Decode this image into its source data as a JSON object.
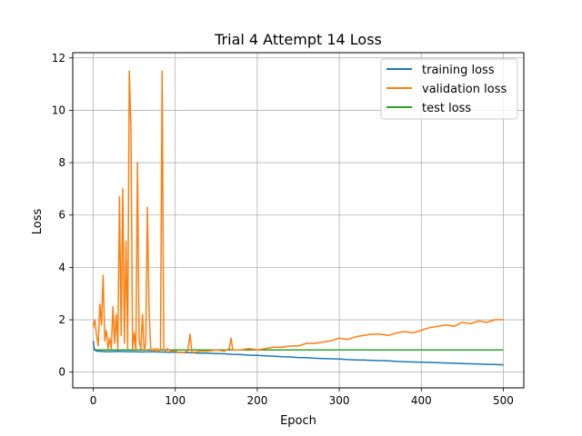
{
  "chart_data": {
    "type": "line",
    "title": "Trial 4 Attempt 14 Loss",
    "xlabel": "Epoch",
    "ylabel": "Loss",
    "xlim": [
      -25,
      525
    ],
    "ylim": [
      -0.6,
      12.2
    ],
    "xticks": [
      0,
      100,
      200,
      300,
      400,
      500
    ],
    "yticks": [
      0,
      2,
      4,
      6,
      8,
      10,
      12
    ],
    "grid": true,
    "legend_position": "top-right",
    "series": [
      {
        "name": "training loss",
        "color": "#1f77b4",
        "x": [
          0,
          1,
          2,
          3,
          5,
          8,
          10,
          15,
          20,
          30,
          40,
          50,
          60,
          70,
          80,
          90,
          100,
          110,
          120,
          130,
          140,
          150,
          160,
          170,
          180,
          190,
          200,
          210,
          220,
          230,
          240,
          250,
          260,
          270,
          280,
          290,
          300,
          310,
          320,
          330,
          340,
          350,
          360,
          370,
          380,
          390,
          400,
          410,
          420,
          430,
          440,
          450,
          460,
          470,
          480,
          490,
          500
        ],
        "y": [
          1.2,
          0.95,
          0.85,
          0.82,
          0.8,
          0.8,
          0.79,
          0.78,
          0.78,
          0.79,
          0.78,
          0.78,
          0.77,
          0.78,
          0.77,
          0.76,
          0.76,
          0.75,
          0.74,
          0.73,
          0.72,
          0.71,
          0.7,
          0.68,
          0.67,
          0.65,
          0.64,
          0.62,
          0.61,
          0.59,
          0.58,
          0.56,
          0.55,
          0.53,
          0.52,
          0.51,
          0.5,
          0.48,
          0.47,
          0.46,
          0.45,
          0.44,
          0.43,
          0.41,
          0.4,
          0.39,
          0.38,
          0.37,
          0.36,
          0.35,
          0.34,
          0.33,
          0.32,
          0.31,
          0.3,
          0.29,
          0.28
        ]
      },
      {
        "name": "validation loss",
        "color": "#ff7f0e",
        "x": [
          0,
          2,
          4,
          6,
          8,
          10,
          12,
          14,
          16,
          18,
          20,
          22,
          24,
          26,
          28,
          30,
          32,
          34,
          36,
          38,
          40,
          42,
          44,
          46,
          48,
          50,
          52,
          54,
          56,
          58,
          60,
          62,
          64,
          66,
          68,
          70,
          72,
          74,
          76,
          78,
          80,
          82,
          84,
          86,
          88,
          90,
          95,
          100,
          105,
          110,
          115,
          118,
          120,
          122,
          130,
          140,
          150,
          160,
          166,
          168,
          170,
          180,
          190,
          200,
          210,
          220,
          230,
          240,
          250,
          260,
          270,
          280,
          290,
          300,
          310,
          320,
          330,
          340,
          350,
          360,
          370,
          380,
          390,
          400,
          410,
          420,
          430,
          440,
          450,
          460,
          470,
          480,
          490,
          500
        ],
        "y": [
          1.7,
          2.0,
          1.4,
          1.0,
          2.6,
          1.8,
          3.7,
          1.2,
          1.6,
          0.9,
          1.3,
          0.9,
          2.5,
          1.1,
          2.2,
          0.9,
          6.7,
          1.4,
          7.0,
          1.1,
          5.0,
          0.9,
          11.5,
          9.3,
          0.9,
          1.5,
          0.8,
          8.0,
          1.2,
          0.9,
          2.2,
          0.8,
          1.1,
          6.3,
          2.4,
          0.9,
          0.8,
          0.9,
          0.8,
          0.9,
          0.8,
          0.9,
          11.5,
          0.9,
          0.8,
          0.9,
          0.8,
          0.8,
          0.75,
          0.75,
          0.8,
          1.45,
          0.8,
          0.75,
          0.8,
          0.8,
          0.85,
          0.8,
          0.9,
          1.3,
          0.85,
          0.85,
          0.9,
          0.85,
          0.9,
          0.95,
          0.95,
          1.0,
          1.0,
          1.1,
          1.1,
          1.15,
          1.2,
          1.3,
          1.25,
          1.35,
          1.4,
          1.45,
          1.45,
          1.4,
          1.5,
          1.55,
          1.5,
          1.6,
          1.7,
          1.75,
          1.8,
          1.75,
          1.9,
          1.85,
          1.95,
          1.9,
          2.0,
          2.0
        ]
      },
      {
        "name": "test loss",
        "color": "#2ca02c",
        "x": [
          0,
          500
        ],
        "y": [
          0.85,
          0.85
        ]
      }
    ]
  }
}
